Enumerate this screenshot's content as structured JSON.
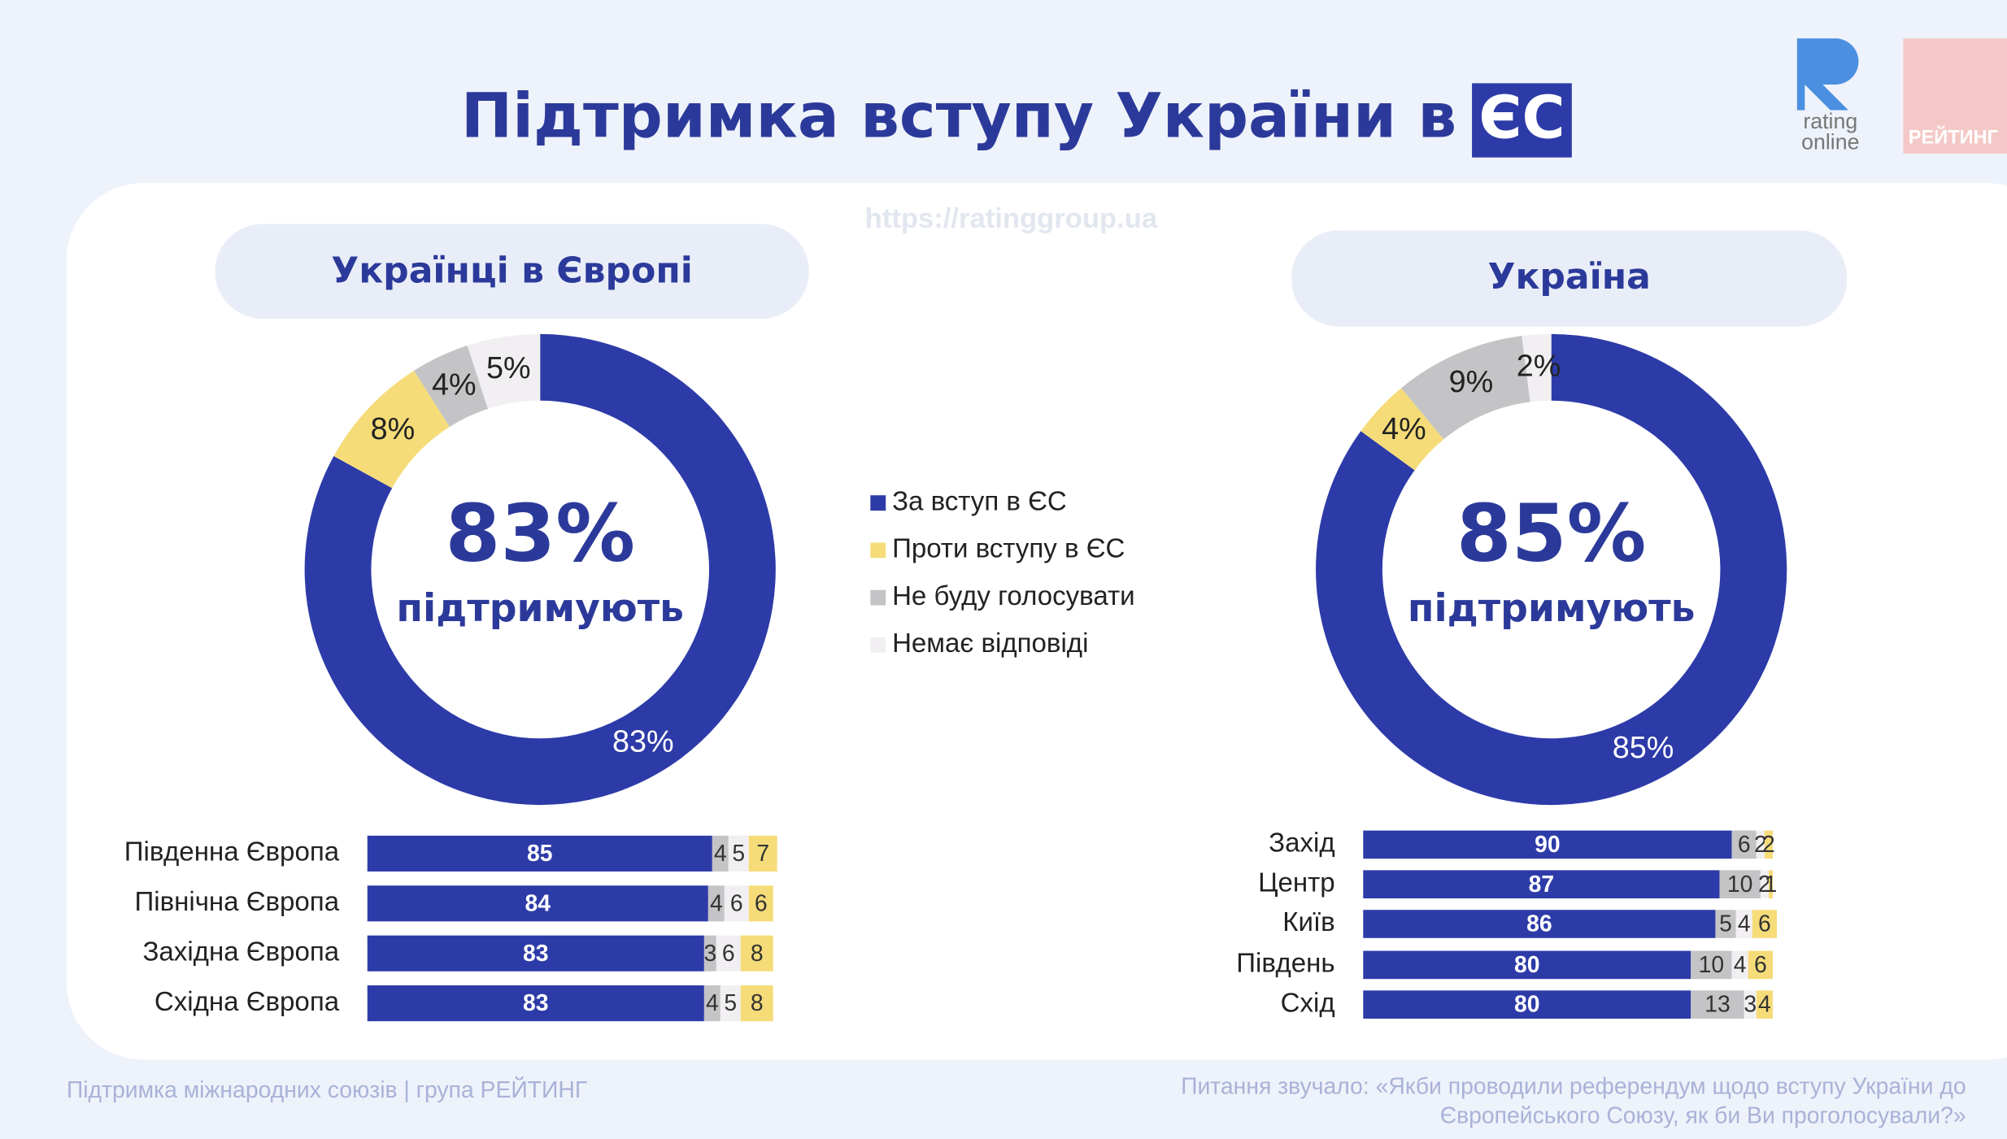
{
  "header": {
    "title": "Підтримка вступу України в",
    "title_badge": "ЄС",
    "logo_line1": "rating",
    "logo_line2": "online",
    "logo_brand": "РЕЙТИНГ",
    "watermark": "https://ratinggroup.ua"
  },
  "chart_data": [
    {
      "type": "donut",
      "panel_title": "Українці в Європі",
      "center_label": "підтримують",
      "categories": [
        "За вступ в ЄС",
        "Проти вступу в ЄС",
        "Не буду голосувати",
        "Немає відповіді"
      ],
      "colors": [
        "#2d3ba8",
        "#f5dc78",
        "#c4c4c6",
        "#f2eff2"
      ],
      "values": [
        83,
        8,
        4,
        5
      ],
      "value_labels": [
        "83%",
        "8%",
        "4%",
        "5%"
      ]
    },
    {
      "type": "donut",
      "panel_title": "Україна",
      "center_label": "підтримують",
      "values": [
        85,
        4,
        9,
        2
      ],
      "value_labels": [
        "85%",
        "4%",
        "9%",
        "2%"
      ]
    },
    {
      "type": "stacked-bar",
      "categories": [
        "Південна Європа",
        "Північна Європа",
        "Західна Європа",
        "Східна Європа"
      ],
      "series": [
        {
          "color": "#2d3ba8",
          "values": [
            85,
            84,
            83,
            83
          ]
        },
        {
          "color": "#c4c4c6",
          "values": [
            4,
            4,
            3,
            4
          ]
        },
        {
          "color": "#f2eff2",
          "values": [
            5,
            6,
            6,
            5
          ]
        },
        {
          "color": "#f5dc78",
          "values": [
            7,
            6,
            8,
            8
          ]
        }
      ]
    },
    {
      "type": "stacked-bar",
      "categories": [
        "Захід",
        "Центр",
        "Київ",
        "Південь",
        "Схід"
      ],
      "series": [
        {
          "color": "#2d3ba8",
          "values": [
            90,
            87,
            86,
            80,
            80
          ]
        },
        {
          "color": "#c4c4c6",
          "values": [
            6,
            10,
            5,
            10,
            13
          ]
        },
        {
          "color": "#f2eff2",
          "values": [
            2,
            2,
            4,
            4,
            3
          ]
        },
        {
          "color": "#f5dc78",
          "values": [
            2,
            1,
            6,
            6,
            4
          ]
        }
      ]
    }
  ],
  "footer": {
    "left": "Підтримка міжнародних союзів | група РЕЙТИНГ",
    "right_line1": "Питання звучало: «Якби проводили референдум щодо вступу України до",
    "right_line2": "Європейського Союзу, як би Ви проголосували?»"
  }
}
